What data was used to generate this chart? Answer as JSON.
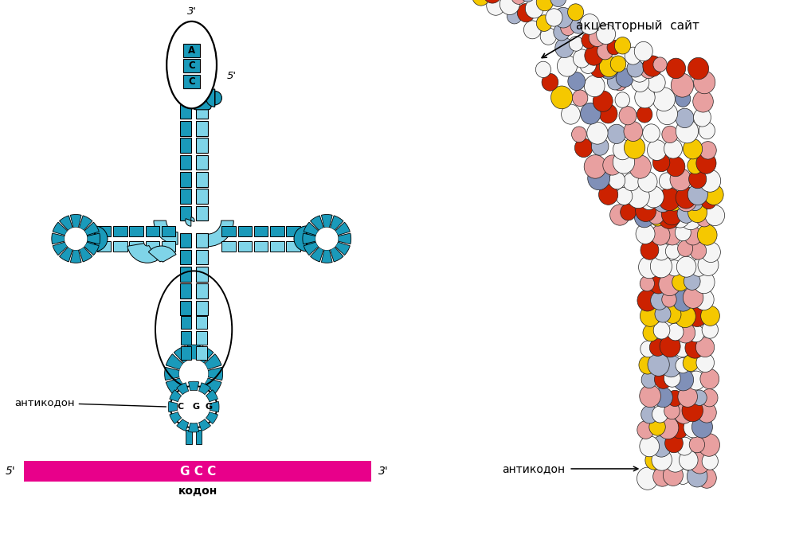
{
  "bg_color": "#ffffff",
  "dark": "#1a9aba",
  "light": "#7fd4e8",
  "magenta": "#e8008a",
  "black": "#000000",
  "white": "#ffffff",
  "label_anticodon_left": "антикодон",
  "label_anticodon_right": "антикодон",
  "label_acceptor": "акцепторный  сайт",
  "label_codon": "кодон",
  "codon_letters": "G C C",
  "anticodon_letters": "C G G",
  "acc_letters": [
    "A",
    "C",
    "C"
  ],
  "label_5p_top": "5'",
  "label_3p_top": "3'",
  "label_5p_codon": "5'",
  "label_3p_codon": "3'",
  "colors_3d": {
    "white": "#f5f5f5",
    "red": "#cc2200",
    "pink": "#e8a0a0",
    "yellow": "#f5c800",
    "blue_light": "#aab4cc",
    "blue_mid": "#8090b8",
    "outline": "#222222"
  }
}
